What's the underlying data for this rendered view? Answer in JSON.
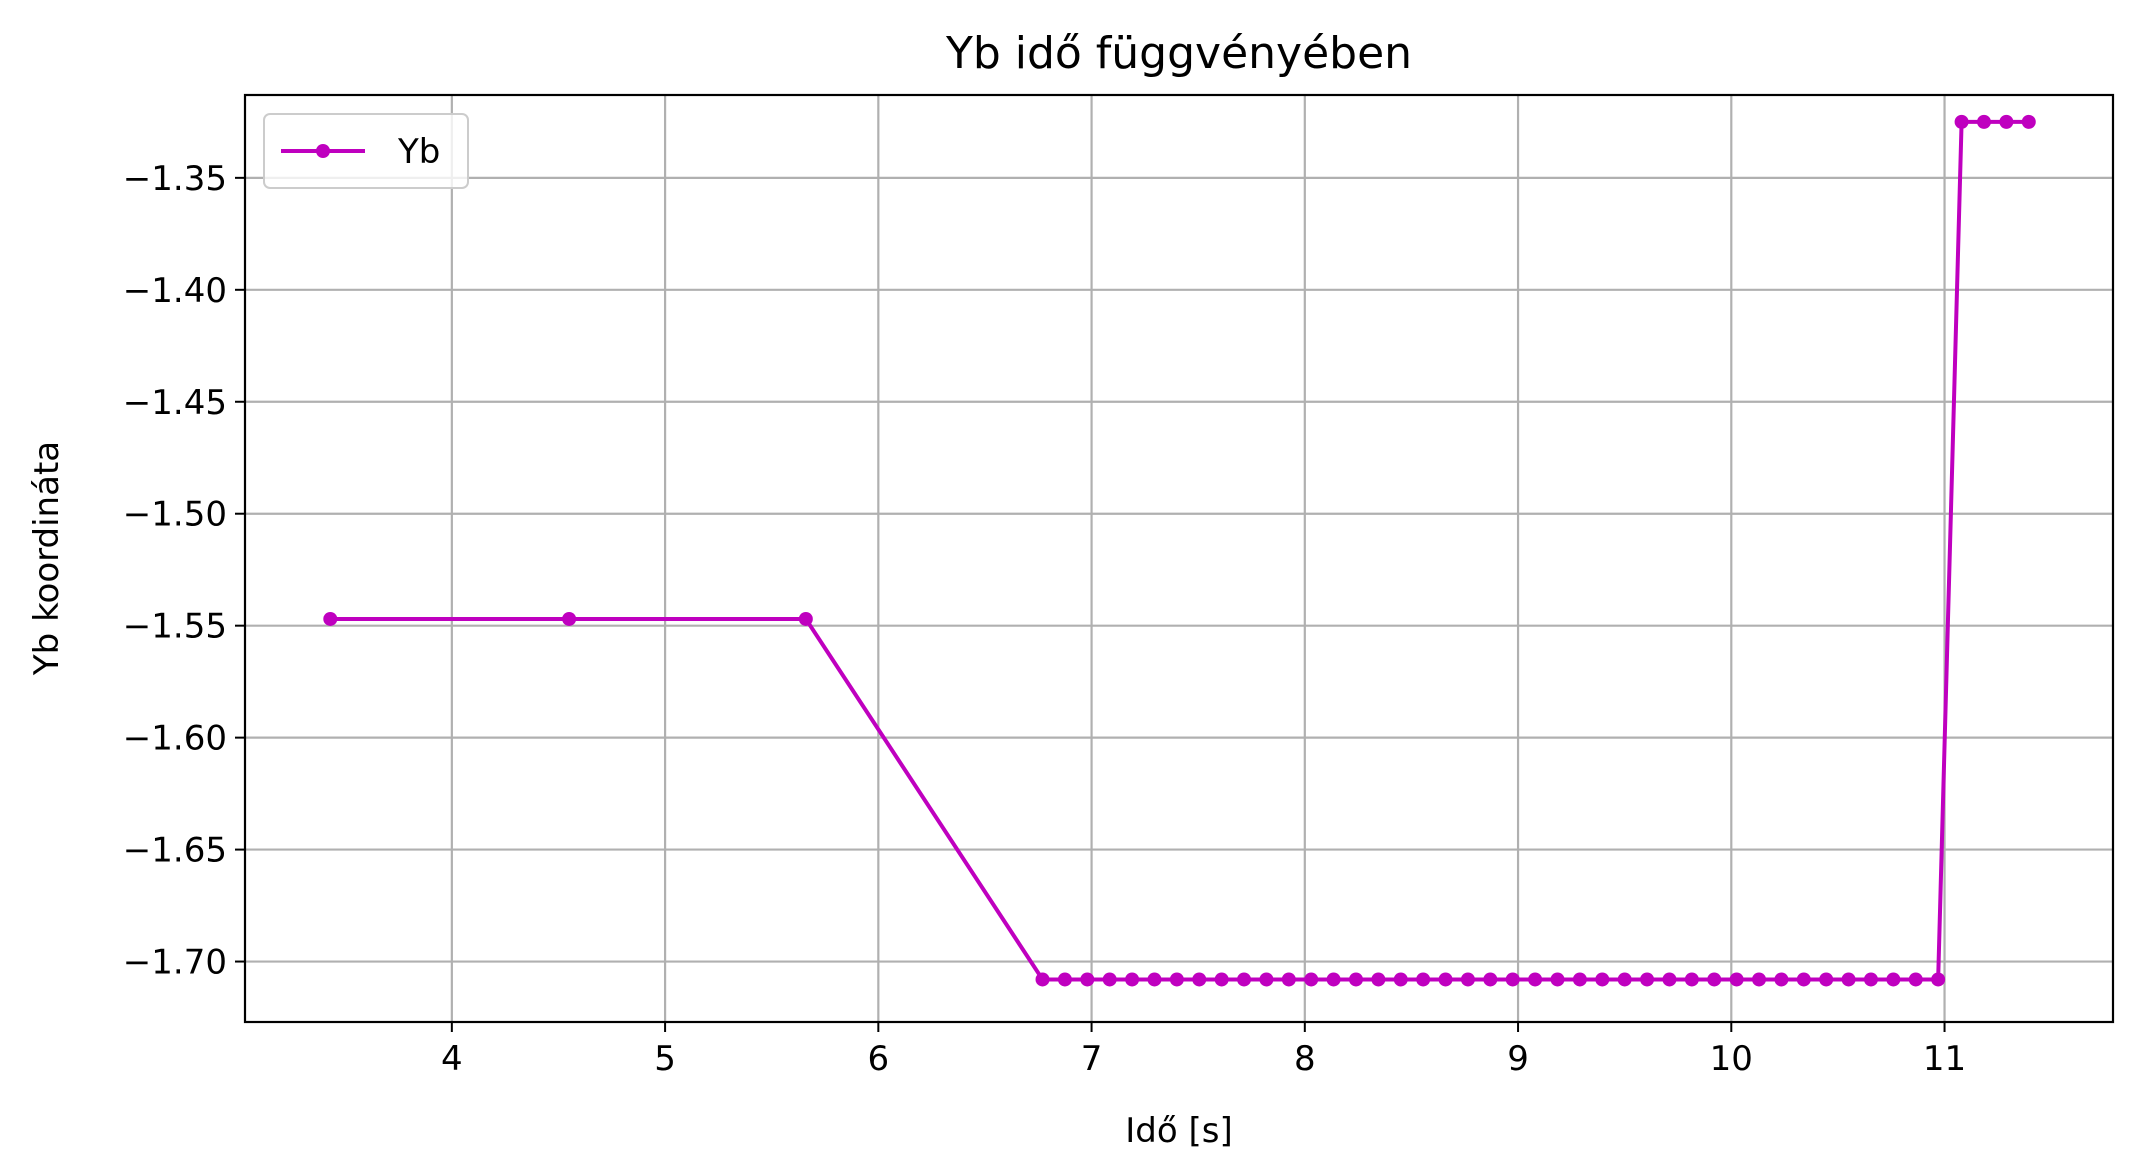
{
  "chart_data": {
    "type": "line",
    "title": "Yb idő függvényében",
    "xlabel": "Idő [s]",
    "ylabel": "Yb koordináta",
    "xlim": [
      3.03,
      11.79
    ],
    "ylim": [
      -1.727,
      -1.313
    ],
    "xticks": [
      4,
      5,
      6,
      7,
      8,
      9,
      10,
      11
    ],
    "xtick_labels": [
      "4",
      "5",
      "6",
      "7",
      "8",
      "9",
      "10",
      "11"
    ],
    "yticks": [
      -1.35,
      -1.4,
      -1.45,
      -1.5,
      -1.55,
      -1.6,
      -1.65,
      -1.7
    ],
    "ytick_labels": [
      "−1.35",
      "−1.40",
      "−1.45",
      "−1.50",
      "−1.55",
      "−1.60",
      "−1.65",
      "−1.70"
    ],
    "grid": true,
    "legend_position": "upper-left",
    "series": [
      {
        "name": "Yb",
        "color": "#bf00bf",
        "marker": "circle",
        "x": [
          3.43,
          4.55,
          5.66,
          6.77,
          6.875,
          6.98,
          7.085,
          7.19,
          7.295,
          7.4,
          7.505,
          7.61,
          7.715,
          7.82,
          7.925,
          8.03,
          8.135,
          8.24,
          8.345,
          8.45,
          8.555,
          8.66,
          8.765,
          8.87,
          8.975,
          9.08,
          9.185,
          9.29,
          9.395,
          9.5,
          9.605,
          9.71,
          9.815,
          9.92,
          10.025,
          10.13,
          10.235,
          10.34,
          10.445,
          10.55,
          10.655,
          10.76,
          10.865,
          10.97,
          11.08,
          11.185,
          11.29,
          11.395
        ],
        "y": [
          -1.547,
          -1.547,
          -1.547,
          -1.708,
          -1.708,
          -1.708,
          -1.708,
          -1.708,
          -1.708,
          -1.708,
          -1.708,
          -1.708,
          -1.708,
          -1.708,
          -1.708,
          -1.708,
          -1.708,
          -1.708,
          -1.708,
          -1.708,
          -1.708,
          -1.708,
          -1.708,
          -1.708,
          -1.708,
          -1.708,
          -1.708,
          -1.708,
          -1.708,
          -1.708,
          -1.708,
          -1.708,
          -1.708,
          -1.708,
          -1.708,
          -1.708,
          -1.708,
          -1.708,
          -1.708,
          -1.708,
          -1.708,
          -1.708,
          -1.708,
          -1.708,
          -1.325,
          -1.325,
          -1.325,
          -1.325
        ]
      }
    ]
  }
}
